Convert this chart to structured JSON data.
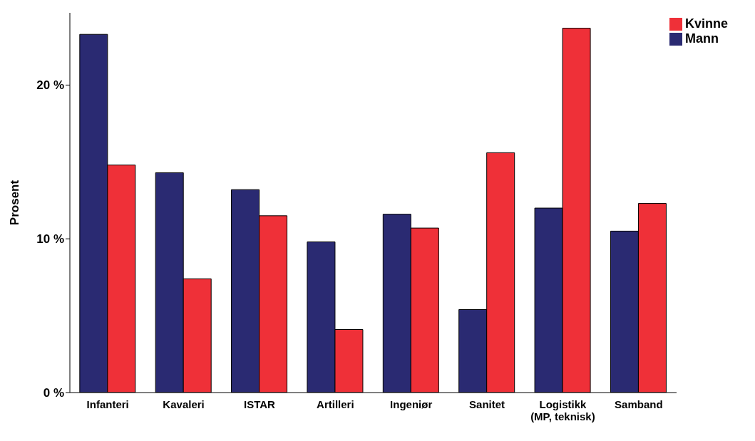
{
  "chart_data": {
    "type": "bar",
    "ylabel": "Prosent",
    "categories": [
      "Infanteri",
      "Kavaleri",
      "ISTAR",
      "Artilleri",
      "Ingeniør",
      "Sanitet",
      "Logistikk\n(MP, teknisk)",
      "Samband"
    ],
    "series": [
      {
        "name": "Mann",
        "color": "#2a2a72",
        "values": [
          23.3,
          14.3,
          13.2,
          9.8,
          11.6,
          5.4,
          12.0,
          10.5
        ]
      },
      {
        "name": "Kvinne",
        "color": "#ef3038",
        "values": [
          14.8,
          7.4,
          11.5,
          4.1,
          10.7,
          15.6,
          23.7,
          12.3
        ]
      }
    ],
    "ylim": [
      0,
      24.7
    ],
    "yticks": [
      {
        "value": 0,
        "label": "0 %"
      },
      {
        "value": 10,
        "label": "10 %"
      },
      {
        "value": 20,
        "label": "20 %"
      }
    ],
    "grid": false,
    "legend": "top right"
  }
}
